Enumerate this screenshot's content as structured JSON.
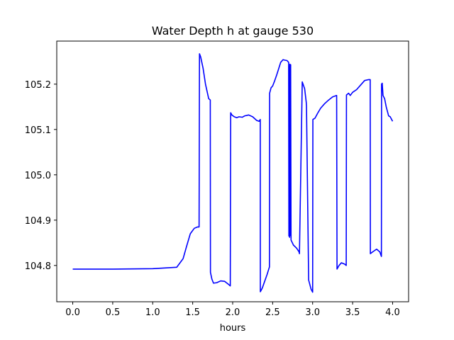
{
  "chart_data": {
    "type": "line",
    "title": "Water Depth h at gauge 530",
    "xlabel": "hours",
    "ylabel": "",
    "xlim": [
      -0.2,
      4.2
    ],
    "ylim": [
      104.72,
      105.295
    ],
    "xticks": [
      0.0,
      0.5,
      1.0,
      1.5,
      2.0,
      2.5,
      3.0,
      3.5,
      4.0
    ],
    "xtick_labels": [
      "0.0",
      "0.5",
      "1.0",
      "1.5",
      "2.0",
      "2.5",
      "3.0",
      "3.5",
      "4.0"
    ],
    "yticks": [
      104.8,
      104.9,
      105.0,
      105.1,
      105.2
    ],
    "ytick_labels": [
      "104.8",
      "104.9",
      "105.0",
      "105.1",
      "105.2"
    ],
    "grid": false,
    "series_color": "#0000ff",
    "series": [
      {
        "x": [
          0.0,
          0.5,
          1.0,
          1.3,
          1.38,
          1.42,
          1.47,
          1.52,
          1.56,
          1.58,
          1.585,
          1.6,
          1.63,
          1.66,
          1.7,
          1.72,
          1.722,
          1.74,
          1.76,
          1.8,
          1.85,
          1.9,
          1.95,
          1.97,
          1.975,
          1.99,
          2.02,
          2.05,
          2.08,
          2.12,
          2.15,
          2.2,
          2.25,
          2.3,
          2.33,
          2.345,
          2.346,
          2.37,
          2.4,
          2.43,
          2.46,
          2.462,
          2.48,
          2.5,
          2.52,
          2.55,
          2.6,
          2.63,
          2.65,
          2.68,
          2.7,
          2.703,
          2.708,
          2.712,
          2.715,
          2.72,
          2.725,
          2.73,
          2.76,
          2.8,
          2.83,
          2.835,
          2.87,
          2.9,
          2.92,
          2.923,
          2.95,
          2.98,
          3.0,
          3.003,
          3.03,
          3.06,
          3.1,
          3.15,
          3.2,
          3.25,
          3.3,
          3.305,
          3.33,
          3.36,
          3.4,
          3.42,
          3.423,
          3.45,
          3.47,
          3.5,
          3.55,
          3.6,
          3.65,
          3.7,
          3.72,
          3.722,
          3.75,
          3.8,
          3.84,
          3.86,
          3.862,
          3.87,
          3.88,
          3.9,
          3.92,
          3.95,
          3.97,
          4.0
        ],
        "y": [
          104.792,
          104.792,
          104.793,
          104.796,
          104.815,
          104.84,
          104.87,
          104.882,
          104.885,
          104.885,
          105.267,
          105.26,
          105.235,
          105.2,
          105.168,
          105.165,
          104.785,
          104.77,
          104.761,
          104.762,
          104.766,
          104.765,
          104.758,
          104.755,
          105.137,
          105.132,
          105.128,
          105.126,
          105.128,
          105.127,
          105.13,
          105.132,
          105.128,
          105.12,
          105.118,
          105.122,
          104.742,
          104.75,
          104.765,
          104.78,
          104.797,
          105.18,
          105.192,
          105.196,
          105.205,
          105.22,
          105.248,
          105.254,
          105.253,
          105.252,
          105.248,
          104.865,
          105.24,
          104.862,
          105.244,
          104.866,
          105.243,
          104.856,
          104.845,
          104.838,
          104.83,
          104.826,
          105.205,
          105.19,
          105.16,
          105.152,
          104.768,
          104.748,
          104.741,
          105.122,
          105.125,
          105.135,
          105.147,
          105.157,
          105.165,
          105.172,
          105.175,
          104.792,
          104.8,
          104.806,
          104.803,
          104.8,
          105.176,
          105.18,
          105.175,
          105.182,
          105.188,
          105.198,
          105.208,
          105.21,
          105.21,
          104.826,
          104.83,
          104.836,
          104.83,
          104.82,
          105.2,
          105.202,
          105.175,
          105.168,
          105.15,
          105.13,
          105.128,
          105.118
        ]
      }
    ]
  }
}
